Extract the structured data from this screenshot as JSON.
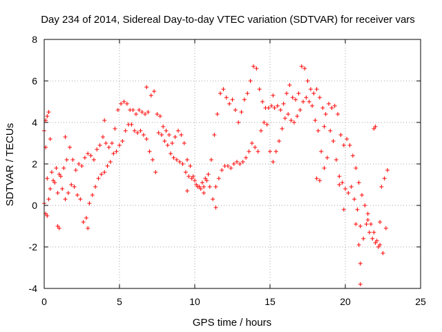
{
  "chart_data": {
    "type": "scatter",
    "title": "Day 234 of 2014, Sidereal Day-to-day VTEC variation (SDTVAR) for receiver vars",
    "xlabel": "GPS time / hours",
    "ylabel": "SDTVAR / TECUs",
    "xlim": [
      0,
      25
    ],
    "ylim": [
      -4,
      8
    ],
    "xticks": [
      0,
      5,
      10,
      15,
      20,
      25
    ],
    "yticks": [
      -4,
      -2,
      0,
      2,
      4,
      6,
      8
    ],
    "grid": true,
    "marker": "+",
    "color": "#ff0000",
    "series": [
      {
        "name": "SDTVAR upper track",
        "points": [
          [
            0.0,
            3.6
          ],
          [
            0.1,
            4.1
          ],
          [
            0.2,
            4.3
          ],
          [
            0.3,
            4.5
          ],
          [
            0.4,
            3.2
          ],
          [
            0.5,
            1.6
          ],
          [
            0.7,
            1.1
          ],
          [
            0.9,
            0.6
          ],
          [
            1.1,
            1.4
          ],
          [
            1.3,
            1.8
          ],
          [
            1.5,
            2.2
          ],
          [
            1.7,
            2.8
          ],
          [
            1.9,
            2.2
          ],
          [
            2.1,
            1.7
          ],
          [
            2.3,
            2.0
          ],
          [
            2.5,
            1.9
          ],
          [
            2.7,
            2.3
          ],
          [
            2.9,
            2.5
          ],
          [
            3.1,
            2.4
          ],
          [
            3.3,
            2.2
          ],
          [
            3.5,
            2.7
          ],
          [
            3.7,
            2.9
          ],
          [
            3.9,
            3.3
          ],
          [
            4.1,
            3.0
          ],
          [
            4.3,
            2.8
          ],
          [
            4.5,
            3.0
          ],
          [
            4.7,
            3.7
          ],
          [
            4.9,
            4.6
          ],
          [
            5.1,
            4.9
          ],
          [
            5.3,
            5.0
          ],
          [
            5.5,
            4.9
          ],
          [
            5.7,
            4.6
          ],
          [
            5.9,
            4.6
          ],
          [
            6.1,
            4.4
          ],
          [
            6.3,
            4.6
          ],
          [
            6.5,
            4.5
          ],
          [
            6.7,
            4.4
          ],
          [
            6.9,
            4.5
          ],
          [
            7.1,
            5.3
          ],
          [
            7.3,
            5.5
          ],
          [
            7.5,
            4.4
          ],
          [
            7.7,
            4.3
          ],
          [
            7.9,
            3.8
          ],
          [
            8.1,
            3.6
          ],
          [
            8.3,
            3.4
          ],
          [
            8.5,
            3.0
          ],
          [
            8.7,
            3.3
          ],
          [
            8.9,
            3.6
          ],
          [
            9.1,
            3.4
          ],
          [
            9.3,
            3.0
          ],
          [
            9.5,
            2.2
          ],
          [
            9.7,
            1.9
          ],
          [
            9.9,
            1.4
          ],
          [
            10.1,
            1.0
          ],
          [
            10.3,
            0.9
          ],
          [
            10.5,
            1.1
          ],
          [
            10.7,
            1.3
          ],
          [
            10.9,
            1.5
          ],
          [
            11.1,
            2.2
          ],
          [
            11.3,
            3.4
          ],
          [
            11.5,
            4.4
          ],
          [
            11.7,
            5.4
          ],
          [
            11.9,
            5.6
          ],
          [
            12.1,
            5.2
          ],
          [
            12.3,
            4.9
          ],
          [
            12.5,
            5.1
          ],
          [
            12.7,
            4.6
          ],
          [
            12.9,
            4.0
          ],
          [
            13.1,
            4.5
          ],
          [
            13.3,
            5.1
          ],
          [
            13.5,
            5.4
          ],
          [
            13.7,
            6.0
          ],
          [
            13.9,
            6.7
          ],
          [
            14.1,
            6.6
          ],
          [
            14.3,
            5.6
          ],
          [
            14.5,
            5.0
          ],
          [
            14.7,
            4.7
          ],
          [
            14.9,
            4.7
          ],
          [
            15.1,
            4.8
          ],
          [
            15.3,
            4.7
          ],
          [
            15.5,
            4.8
          ],
          [
            15.7,
            4.6
          ],
          [
            15.9,
            4.9
          ],
          [
            16.1,
            5.4
          ],
          [
            16.3,
            5.8
          ],
          [
            16.5,
            5.2
          ],
          [
            16.7,
            5.1
          ],
          [
            16.9,
            5.4
          ],
          [
            17.1,
            6.7
          ],
          [
            17.3,
            6.6
          ],
          [
            17.5,
            6.0
          ],
          [
            17.7,
            5.6
          ],
          [
            17.9,
            5.4
          ],
          [
            18.1,
            5.6
          ],
          [
            18.3,
            5.2
          ],
          [
            18.5,
            4.7
          ],
          [
            18.7,
            4.4
          ],
          [
            18.9,
            4.9
          ],
          [
            19.1,
            4.7
          ],
          [
            19.3,
            4.8
          ],
          [
            19.5,
            4.4
          ],
          [
            19.7,
            3.4
          ],
          [
            19.9,
            2.9
          ],
          [
            20.1,
            3.2
          ],
          [
            20.3,
            2.9
          ],
          [
            20.5,
            2.4
          ],
          [
            20.7,
            1.8
          ],
          [
            20.9,
            1.1
          ],
          [
            21.1,
            0.5
          ],
          [
            21.3,
            0.0
          ],
          [
            21.5,
            -0.4
          ],
          [
            21.7,
            -0.9
          ],
          [
            21.9,
            -1.3
          ],
          [
            22.1,
            -1.7
          ],
          [
            22.3,
            -1.9
          ],
          [
            22.5,
            -2.3
          ],
          [
            22.7,
            -1.1
          ]
        ]
      },
      {
        "name": "SDTVAR lower track",
        "points": [
          [
            0.0,
            0.1
          ],
          [
            0.1,
            -0.4
          ],
          [
            0.2,
            -0.5
          ],
          [
            0.3,
            0.3
          ],
          [
            0.4,
            0.8
          ],
          [
            0.6,
            1.2
          ],
          [
            0.8,
            1.8
          ],
          [
            1.0,
            1.5
          ],
          [
            1.2,
            0.8
          ],
          [
            1.4,
            0.3
          ],
          [
            1.6,
            0.6
          ],
          [
            1.8,
            1.0
          ],
          [
            2.0,
            0.9
          ],
          [
            2.2,
            0.5
          ],
          [
            2.4,
            0.3
          ],
          [
            2.6,
            -0.8
          ],
          [
            2.8,
            -0.6
          ],
          [
            3.0,
            0.1
          ],
          [
            3.2,
            0.5
          ],
          [
            3.4,
            0.9
          ],
          [
            3.6,
            1.3
          ],
          [
            3.8,
            1.5
          ],
          [
            4.0,
            1.6
          ],
          [
            4.2,
            1.9
          ],
          [
            4.4,
            2.1
          ],
          [
            4.6,
            2.5
          ],
          [
            4.8,
            2.6
          ],
          [
            5.0,
            2.9
          ],
          [
            5.2,
            3.1
          ],
          [
            5.4,
            3.6
          ],
          [
            5.6,
            3.9
          ],
          [
            5.8,
            3.9
          ],
          [
            6.0,
            3.6
          ],
          [
            6.2,
            3.5
          ],
          [
            6.4,
            3.6
          ],
          [
            6.6,
            3.4
          ],
          [
            6.8,
            3.2
          ],
          [
            7.0,
            2.6
          ],
          [
            7.2,
            2.2
          ],
          [
            7.4,
            1.6
          ],
          [
            7.6,
            3.5
          ],
          [
            7.8,
            3.4
          ],
          [
            8.0,
            3.1
          ],
          [
            8.2,
            2.9
          ],
          [
            8.4,
            2.5
          ],
          [
            8.6,
            2.3
          ],
          [
            8.8,
            2.2
          ],
          [
            9.0,
            2.1
          ],
          [
            9.2,
            2.0
          ],
          [
            9.4,
            1.6
          ],
          [
            9.6,
            1.4
          ],
          [
            9.8,
            1.3
          ],
          [
            10.0,
            1.2
          ],
          [
            10.2,
            0.9
          ],
          [
            10.4,
            0.8
          ],
          [
            10.6,
            0.9
          ],
          [
            10.8,
            1.2
          ],
          [
            11.0,
            0.9
          ],
          [
            11.2,
            0.3
          ],
          [
            11.4,
            0.9
          ],
          [
            11.6,
            1.3
          ],
          [
            11.8,
            1.7
          ],
          [
            12.0,
            1.9
          ],
          [
            12.2,
            1.9
          ],
          [
            12.4,
            1.8
          ],
          [
            12.6,
            2.0
          ],
          [
            12.8,
            2.1
          ],
          [
            13.0,
            2.0
          ],
          [
            13.2,
            2.1
          ],
          [
            13.4,
            2.3
          ],
          [
            13.6,
            2.6
          ],
          [
            13.8,
            3.0
          ],
          [
            14.0,
            2.8
          ],
          [
            14.2,
            2.6
          ],
          [
            14.4,
            3.6
          ],
          [
            14.6,
            4.0
          ],
          [
            14.8,
            3.9
          ],
          [
            15.0,
            2.6
          ],
          [
            15.2,
            2.1
          ],
          [
            15.4,
            2.6
          ],
          [
            15.6,
            3.1
          ],
          [
            15.8,
            3.7
          ],
          [
            16.0,
            4.2
          ],
          [
            16.2,
            4.4
          ],
          [
            16.4,
            4.1
          ],
          [
            16.6,
            4.0
          ],
          [
            16.8,
            4.3
          ],
          [
            17.0,
            4.6
          ],
          [
            17.2,
            5.0
          ],
          [
            17.4,
            5.2
          ],
          [
            17.6,
            5.0
          ],
          [
            17.8,
            4.8
          ],
          [
            18.0,
            4.1
          ],
          [
            18.2,
            3.6
          ],
          [
            18.4,
            2.6
          ],
          [
            18.6,
            1.8
          ],
          [
            18.8,
            2.3
          ],
          [
            19.0,
            3.6
          ],
          [
            19.2,
            3.1
          ],
          [
            19.4,
            2.2
          ],
          [
            19.6,
            1.4
          ],
          [
            19.8,
            1.1
          ],
          [
            20.0,
            0.8
          ],
          [
            20.2,
            0.6
          ],
          [
            20.4,
            0.9
          ],
          [
            20.6,
            0.3
          ],
          [
            20.8,
            -0.2
          ],
          [
            21.0,
            -1.0
          ],
          [
            21.2,
            -1.6
          ],
          [
            21.4,
            -0.9
          ],
          [
            21.6,
            -1.3
          ],
          [
            21.8,
            -1.6
          ],
          [
            22.0,
            -1.8
          ],
          [
            22.2,
            -2.0
          ],
          [
            22.4,
            0.9
          ],
          [
            22.6,
            1.3
          ],
          [
            22.8,
            1.7
          ]
        ]
      },
      {
        "name": "SDTVAR isolated points",
        "points": [
          [
            0.1,
            2.8
          ],
          [
            0.2,
            1.3
          ],
          [
            0.9,
            -1.0
          ],
          [
            1.0,
            -1.1
          ],
          [
            1.4,
            3.3
          ],
          [
            2.9,
            -1.1
          ],
          [
            4.0,
            4.1
          ],
          [
            6.8,
            5.7
          ],
          [
            9.5,
            0.7
          ],
          [
            10.6,
            0.6
          ],
          [
            11.4,
            -0.1
          ],
          [
            15.2,
            5.3
          ],
          [
            18.1,
            1.3
          ],
          [
            18.3,
            1.2
          ],
          [
            18.6,
            3.8
          ],
          [
            19.6,
            1.0
          ],
          [
            19.9,
            -0.2
          ],
          [
            20.7,
            -0.9
          ],
          [
            20.9,
            -1.9
          ],
          [
            21.0,
            -2.8
          ],
          [
            21.0,
            -3.8
          ],
          [
            21.9,
            3.7
          ],
          [
            22.0,
            3.8
          ],
          [
            22.3,
            -0.8
          ],
          [
            21.5,
            -0.7
          ]
        ]
      }
    ]
  }
}
